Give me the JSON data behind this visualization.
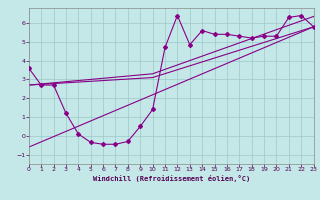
{
  "xlabel": "Windchill (Refroidissement éolien,°C)",
  "background_color": "#c4e8e8",
  "grid_color": "#a0c8c8",
  "line_color": "#880088",
  "xlim": [
    0,
    23
  ],
  "ylim": [
    -1.5,
    6.8
  ],
  "xticks": [
    0,
    1,
    2,
    3,
    4,
    5,
    6,
    7,
    8,
    9,
    10,
    11,
    12,
    13,
    14,
    15,
    16,
    17,
    18,
    19,
    20,
    21,
    22,
    23
  ],
  "yticks": [
    -1,
    0,
    1,
    2,
    3,
    4,
    5,
    6
  ],
  "curve1_x": [
    0,
    1,
    2,
    3,
    4,
    5,
    6,
    7,
    8,
    9,
    10,
    11,
    12,
    13,
    14,
    15,
    16,
    17,
    18,
    19,
    20,
    21,
    22,
    23
  ],
  "curve1_y": [
    3.6,
    2.7,
    2.7,
    1.2,
    0.1,
    -0.35,
    -0.45,
    -0.45,
    -0.3,
    0.5,
    1.4,
    4.7,
    6.4,
    4.85,
    5.6,
    5.4,
    5.4,
    5.3,
    5.2,
    5.3,
    5.3,
    6.3,
    6.4,
    5.8
  ],
  "curve2_x": [
    0,
    23
  ],
  "curve2_y": [
    -0.6,
    5.8
  ],
  "curve3_x": [
    0,
    10,
    23
  ],
  "curve3_y": [
    2.7,
    3.1,
    5.8
  ],
  "curve4_x": [
    0,
    10,
    23
  ],
  "curve4_y": [
    2.7,
    3.3,
    6.35
  ]
}
